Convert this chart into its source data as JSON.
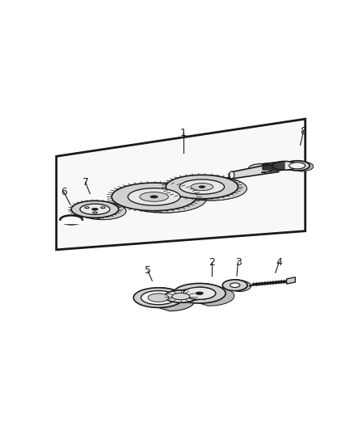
{
  "background_color": "#ffffff",
  "figure_width": 4.38,
  "figure_height": 5.33,
  "dpi": 100,
  "line_color": "#1a1a1a",
  "panel_fill": "#f8f8f8",
  "gear_fill_light": "#e8e8e8",
  "gear_fill_mid": "#d0d0d0",
  "gear_fill_dark": "#b8b8b8",
  "shaft_fill": "#d8d8d8",
  "white": "#ffffff"
}
